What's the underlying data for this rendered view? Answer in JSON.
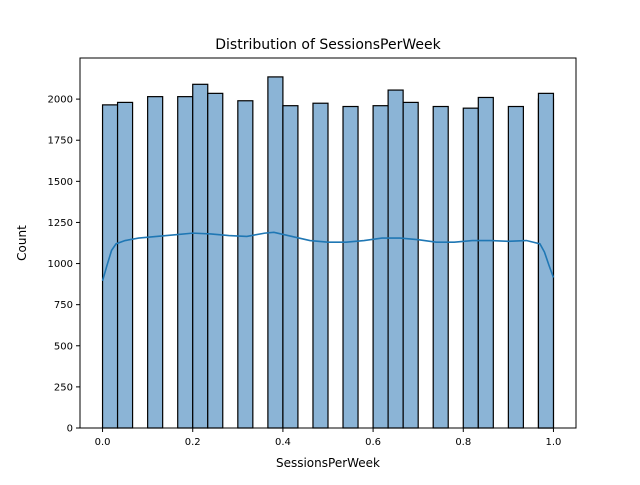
{
  "chart_data": {
    "type": "bar",
    "title": "Distribution of SessionsPerWeek",
    "xlabel": "SessionsPerWeek",
    "ylabel": "Count",
    "xlim": [
      -0.05,
      1.05
    ],
    "ylim": [
      0,
      2250
    ],
    "xticks": [
      0.0,
      0.2,
      0.4,
      0.6,
      0.8,
      1.0
    ],
    "xtick_labels": [
      "0.0",
      "0.2",
      "0.4",
      "0.6",
      "0.8",
      "1.0"
    ],
    "yticks": [
      0,
      250,
      500,
      750,
      1000,
      1250,
      1500,
      1750,
      2000
    ],
    "ytick_labels": [
      "0",
      "250",
      "500",
      "750",
      "1000",
      "1250",
      "1500",
      "1750",
      "2000"
    ],
    "grid": false,
    "bin_width": 0.0333,
    "bins": [
      {
        "x0": 0.0,
        "count": 1965
      },
      {
        "x0": 0.0333,
        "count": 1980
      },
      {
        "x0": 0.1,
        "count": 2015
      },
      {
        "x0": 0.1667,
        "count": 2015
      },
      {
        "x0": 0.2,
        "count": 2090
      },
      {
        "x0": 0.2333,
        "count": 2035
      },
      {
        "x0": 0.3,
        "count": 1990
      },
      {
        "x0": 0.3667,
        "count": 2135
      },
      {
        "x0": 0.4,
        "count": 1960
      },
      {
        "x0": 0.4667,
        "count": 1975
      },
      {
        "x0": 0.5333,
        "count": 1955
      },
      {
        "x0": 0.6,
        "count": 1960
      },
      {
        "x0": 0.6333,
        "count": 2055
      },
      {
        "x0": 0.6667,
        "count": 1980
      },
      {
        "x0": 0.7333,
        "count": 1955
      },
      {
        "x0": 0.8,
        "count": 1945
      },
      {
        "x0": 0.8333,
        "count": 2010
      },
      {
        "x0": 0.9,
        "count": 1955
      },
      {
        "x0": 0.9667,
        "count": 2000
      },
      {
        "x0": 1.0,
        "count": 2035,
        "x1": 0.9667
      }
    ],
    "kde": {
      "x": [
        0.0,
        0.01,
        0.02,
        0.03,
        0.05,
        0.08,
        0.12,
        0.16,
        0.2,
        0.24,
        0.28,
        0.32,
        0.36,
        0.38,
        0.42,
        0.46,
        0.5,
        0.54,
        0.58,
        0.62,
        0.66,
        0.7,
        0.74,
        0.78,
        0.82,
        0.86,
        0.9,
        0.94,
        0.97,
        0.98,
        0.99,
        1.0
      ],
      "y": [
        895,
        990,
        1080,
        1120,
        1140,
        1155,
        1165,
        1175,
        1185,
        1180,
        1170,
        1165,
        1185,
        1190,
        1165,
        1140,
        1130,
        1130,
        1140,
        1155,
        1155,
        1145,
        1130,
        1130,
        1140,
        1140,
        1135,
        1140,
        1120,
        1070,
        990,
        915
      ]
    },
    "colors": {
      "bar_fill": "#8bb4d6",
      "bar_edge": "#000000",
      "kde_line": "#1f77b4",
      "axes": "#000000"
    }
  }
}
